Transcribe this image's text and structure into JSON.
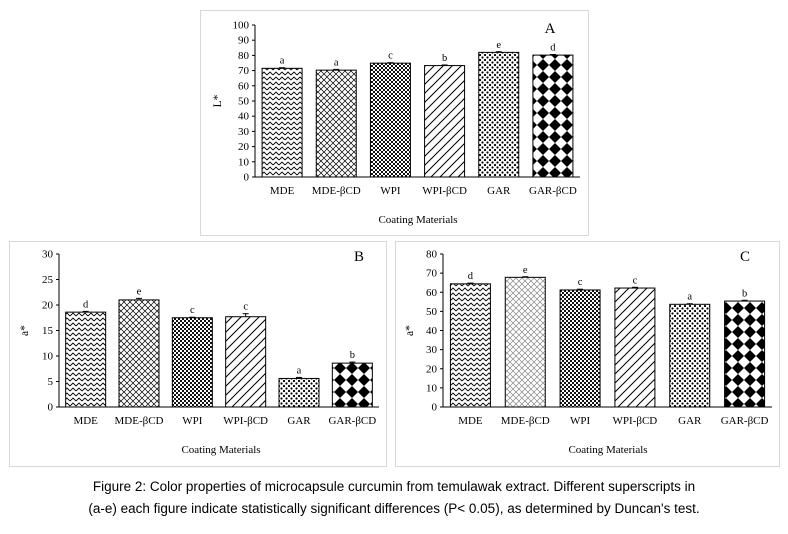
{
  "chart_data": [
    {
      "type": "bar",
      "panel_letter": "A",
      "categories": [
        "MDE",
        "MDE-βCD",
        "WPI",
        "WPI-βCD",
        "GAR",
        "GAR-βCD"
      ],
      "values": [
        71.5,
        70.3,
        74.9,
        73.3,
        82.0,
        80.2
      ],
      "errors": [
        0.4,
        0.5,
        0.3,
        0.4,
        0.4,
        0.4
      ],
      "superscripts": [
        "a",
        "a",
        "c",
        "b",
        "e",
        "d"
      ],
      "patterns": [
        "zigzag",
        "crosshatch",
        "checker",
        "diagonal",
        "dots",
        "diamond"
      ],
      "ylabel": "L*",
      "xlabel": "Coating Materials",
      "ylim": [
        0,
        100
      ],
      "yticks": [
        0,
        10,
        20,
        30,
        40,
        50,
        60,
        70,
        80,
        90,
        100
      ],
      "grid": false
    },
    {
      "type": "bar",
      "panel_letter": "B",
      "categories": [
        "MDE",
        "MDE-βCD",
        "WPI",
        "WPI-βCD",
        "GAR",
        "GAR-βCD"
      ],
      "values": [
        18.6,
        21.0,
        17.5,
        17.7,
        5.6,
        8.6
      ],
      "errors": [
        0.15,
        0.3,
        0.1,
        0.6,
        0.2,
        0.2
      ],
      "superscripts": [
        "d",
        "e",
        "c",
        "c",
        "a",
        "b"
      ],
      "patterns": [
        "zigzag",
        "crosshatch",
        "checker",
        "diagonal",
        "dots",
        "diamond"
      ],
      "ylabel": "a*",
      "xlabel": "Coating Materials",
      "ylim": [
        0,
        30
      ],
      "yticks": [
        0,
        5,
        10,
        15,
        20,
        25,
        30
      ],
      "grid": false
    },
    {
      "type": "bar",
      "panel_letter": "C",
      "categories": [
        "MDE",
        "MDE-βCD",
        "WPI",
        "WPI-βCD",
        "GAR",
        "GAR-βCD"
      ],
      "values": [
        64.4,
        67.8,
        61.2,
        62.2,
        53.7,
        55.4
      ],
      "errors": [
        0.4,
        0.3,
        0.4,
        0.4,
        0.3,
        0.4
      ],
      "superscripts": [
        "d",
        "e",
        "c",
        "c",
        "a",
        "b"
      ],
      "patterns": [
        "zigzag",
        "crosshatch-light",
        "checker",
        "diagonal",
        "dots",
        "diamond"
      ],
      "ylabel": "a*",
      "xlabel": "Coating Materials",
      "ylim": [
        0,
        80
      ],
      "yticks": [
        0,
        10,
        20,
        30,
        40,
        50,
        60,
        70,
        80
      ],
      "grid": false
    }
  ],
  "caption": {
    "line1": "Figure 2:  Color properties of microcapsule curcumin from temulawak extract. Different superscripts in",
    "line2": "(a-e) each figure indicate statistically significant differences (P< 0.05), as determined by Duncan's test."
  }
}
